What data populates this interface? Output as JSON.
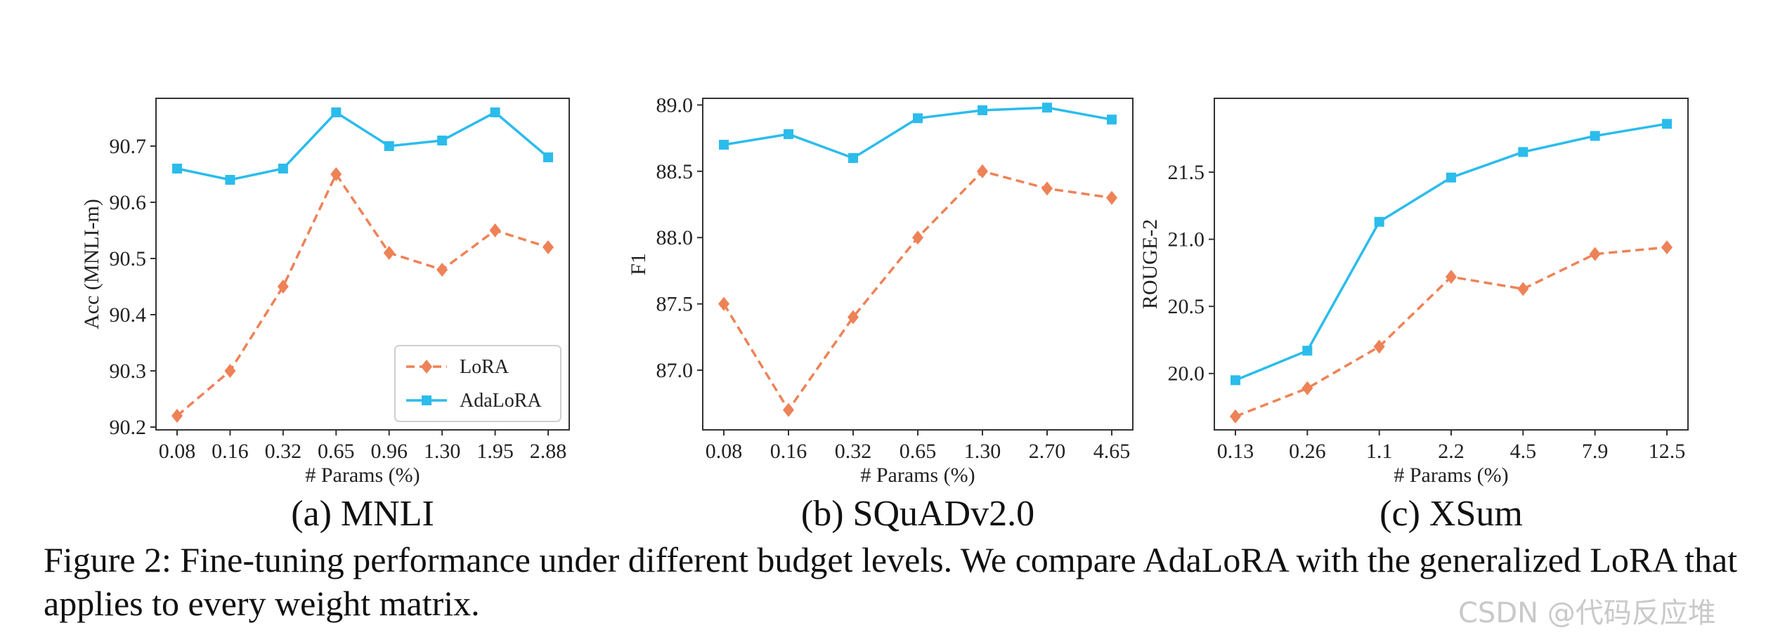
{
  "chart_data": [
    {
      "type": "line",
      "subcaption": "(a) MNLI",
      "xlabel": "# Params (%)",
      "ylabel": "Acc (MNLI-m)",
      "categories": [
        "0.08",
        "0.16",
        "0.32",
        "0.65",
        "0.96",
        "1.30",
        "1.95",
        "2.88"
      ],
      "yticks": [
        "90.2",
        "90.3",
        "90.4",
        "90.5",
        "90.6",
        "90.7"
      ],
      "ylim": [
        90.195,
        90.785
      ],
      "legend": "bottom-right",
      "series": [
        {
          "name": "LoRA",
          "style": "dashed-diamond",
          "values": [
            90.22,
            90.3,
            90.45,
            90.65,
            90.51,
            90.48,
            90.55,
            90.52
          ]
        },
        {
          "name": "AdaLoRA",
          "style": "solid-square",
          "values": [
            90.66,
            90.64,
            90.66,
            90.76,
            90.7,
            90.71,
            90.76,
            90.68
          ]
        }
      ]
    },
    {
      "type": "line",
      "subcaption": "(b) SQuADv2.0",
      "xlabel": "# Params (%)",
      "ylabel": "F1",
      "categories": [
        "0.08",
        "0.16",
        "0.32",
        "0.65",
        "1.30",
        "2.70",
        "4.65"
      ],
      "yticks": [
        "87.0",
        "87.5",
        "88.0",
        "88.5",
        "89.0"
      ],
      "ylim": [
        86.55,
        89.05
      ],
      "series": [
        {
          "name": "LoRA",
          "style": "dashed-diamond",
          "values": [
            87.5,
            86.7,
            87.4,
            88.0,
            88.5,
            88.37,
            88.3
          ]
        },
        {
          "name": "AdaLoRA",
          "style": "solid-square",
          "values": [
            88.7,
            88.78,
            88.6,
            88.9,
            88.96,
            88.98,
            88.89
          ]
        }
      ]
    },
    {
      "type": "line",
      "subcaption": "(c) XSum",
      "xlabel": "# Params (%)",
      "ylabel": "ROUGE-2",
      "categories": [
        "0.13",
        "0.26",
        "1.1",
        "2.2",
        "4.5",
        "7.9",
        "12.5"
      ],
      "yticks": [
        "20.0",
        "20.5",
        "21.0",
        "21.5"
      ],
      "ylim": [
        19.58,
        22.05
      ],
      "series": [
        {
          "name": "LoRA",
          "style": "dashed-diamond",
          "values": [
            19.68,
            19.89,
            20.2,
            20.72,
            20.63,
            20.89,
            20.94
          ]
        },
        {
          "name": "AdaLoRA",
          "style": "solid-square",
          "values": [
            19.95,
            20.17,
            21.13,
            21.46,
            21.65,
            21.77,
            21.86
          ]
        }
      ]
    }
  ],
  "caption": "Figure 2: Fine-tuning performance under different budget levels. We compare AdaLoRA with the generalized LoRA that applies to every weight matrix.",
  "watermark": "CSDN @代码反应堆",
  "colors": {
    "lora": "#ee8257",
    "adalora": "#2bbcec",
    "axis": "#333333"
  }
}
